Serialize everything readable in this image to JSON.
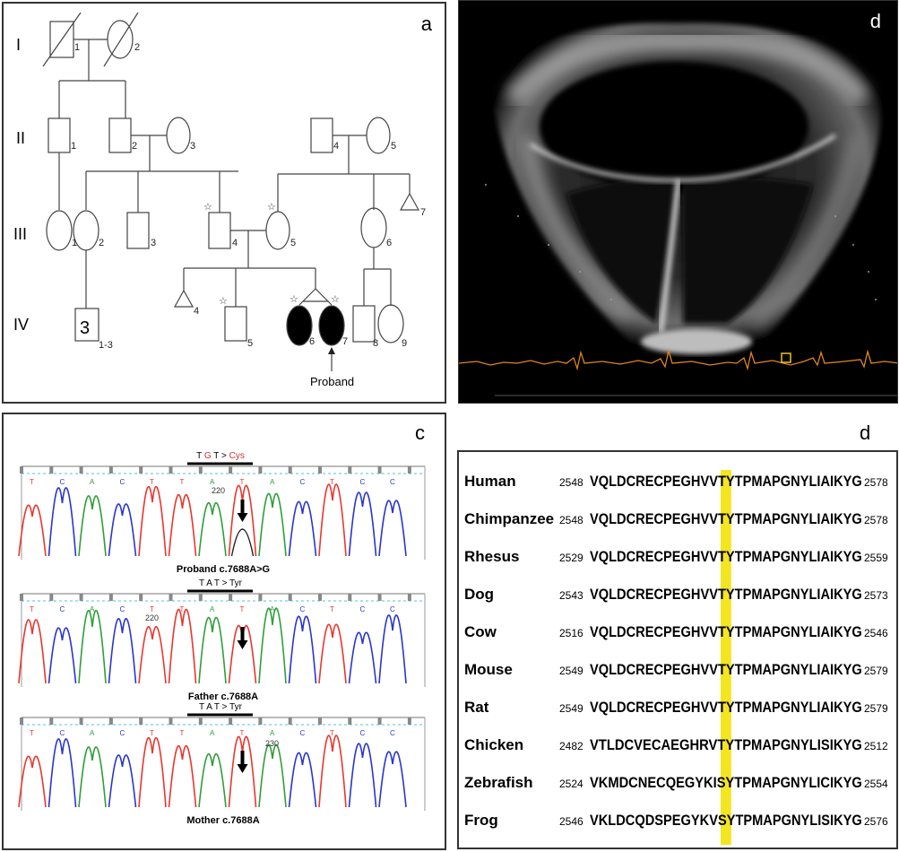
{
  "panel_a": {
    "letter": "a",
    "generations": [
      "I",
      "II",
      "III",
      "IV"
    ],
    "individuals": {
      "I1": "1",
      "I2": "2",
      "II1": "1",
      "II2": "2",
      "II3": "3",
      "II4": "4",
      "II5": "5",
      "III1": "1",
      "III2": "2",
      "III3": "3",
      "III4": "4",
      "III5": "5",
      "III6": "6",
      "III7": "7",
      "IV4": "4",
      "IV5": "5",
      "IV6": "6",
      "IV7": "7",
      "IV8": "8",
      "IV9": "9"
    },
    "group_count": "3",
    "group_label": "1-3",
    "proband_label": "Proband",
    "star": "☆"
  },
  "panel_d1": {
    "letter": "d"
  },
  "panel_c": {
    "letter": "c",
    "traces": [
      {
        "codon_prefix": "T",
        "codon_mut": "G",
        "codon_suffix": "T > ",
        "aa": "Cys",
        "position": "220",
        "caption": "Proband c.7688A>G",
        "bases": [
          "T",
          "C",
          "A",
          "C",
          "T",
          "T",
          "A",
          "T",
          "A",
          "C",
          "T",
          "C",
          "C"
        ]
      },
      {
        "codon": "T A T > Tyr",
        "position": "220",
        "caption": "Father c.7688A",
        "bases": [
          "T",
          "C",
          "A",
          "C",
          "T",
          "T",
          "A",
          "T",
          "A",
          "C",
          "T",
          "C",
          "C"
        ]
      },
      {
        "codon": "T A T > Tyr",
        "position": "230",
        "caption": "Mother c.7688A",
        "bases": [
          "T",
          "C",
          "A",
          "C",
          "T",
          "T",
          "A",
          "T",
          "A",
          "C",
          "T",
          "C",
          "C"
        ]
      }
    ],
    "colors": {
      "T": "#e8372f",
      "C": "#2a36c9",
      "A": "#2f9e3a",
      "G": "#222222"
    }
  },
  "panel_d2": {
    "letter": "d",
    "highlight_color": "#f3e520",
    "rows": [
      {
        "species": "Human",
        "start": "2548",
        "pre": "VQLDCRECPEGHVVT",
        "site": "Y",
        "post": "TPMAPGNYLIAIKYG",
        "end": "2578"
      },
      {
        "species": "Chimpanzee",
        "start": "2548",
        "pre": "VQLDCRECPEGHVVT",
        "site": "Y",
        "post": "TPMAPGNYLIAIKYG",
        "end": "2578"
      },
      {
        "species": "Rhesus",
        "start": "2529",
        "pre": "VQLDCRECPEGHVVT",
        "site": "Y",
        "post": "TPMAPGNYLIAIKYG",
        "end": "2559"
      },
      {
        "species": "Dog",
        "start": "2543",
        "pre": "VQLDCRECPEGHVVT",
        "site": "Y",
        "post": "TPMAPGNYLIAIKYG",
        "end": "2573"
      },
      {
        "species": "Cow",
        "start": "2516",
        "pre": "VQLDCRECPEGHVVT",
        "site": "Y",
        "post": "TPMAPGNYLIAIKYG",
        "end": "2546"
      },
      {
        "species": "Mouse",
        "start": "2549",
        "pre": "VQLDCRECPEGHVVT",
        "site": "Y",
        "post": "TPMAPGNYLIAIKYG",
        "end": "2579"
      },
      {
        "species": "Rat",
        "start": "2549",
        "pre": "VQLDCRECPEGHVVT",
        "site": "Y",
        "post": "TPMAPGNYLIAIKYG",
        "end": "2579"
      },
      {
        "species": "Chicken",
        "start": "2482",
        "pre": "VTLDCVECAEGHRVT",
        "site": "Y",
        "post": "TPMAPGNYLISIKYG",
        "end": "2512"
      },
      {
        "species": "Zebrafish",
        "start": "2524",
        "pre": "VKMDCNECQEGYKIS",
        "site": "Y",
        "post": "TPMAPGNYLICIKYG",
        "end": "2554"
      },
      {
        "species": "Frog",
        "start": "2546",
        "pre": "VKLDCQDSPEGYKVS",
        "site": "Y",
        "post": "TPMAPGNYLISIKYG",
        "end": "2576"
      }
    ]
  }
}
